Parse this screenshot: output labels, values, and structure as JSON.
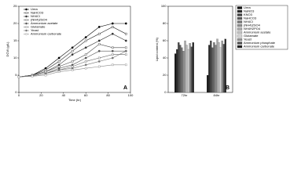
{
  "chart_data": [
    {
      "type": "line",
      "panel": "A",
      "x_label": "Time (hr)",
      "y_label": "DCW (g/L)",
      "x": [
        0,
        12,
        24,
        36,
        48,
        60,
        72,
        84,
        96
      ],
      "xlim": [
        0,
        100
      ],
      "xticks": [
        0,
        20,
        40,
        60,
        80,
        100
      ],
      "ylim": [
        0,
        25
      ],
      "yticks": [
        0,
        5,
        10,
        15,
        20,
        25
      ],
      "series": [
        {
          "name": "Urea",
          "color": "#000000",
          "values": [
            4.5,
            5,
            7,
            10,
            13,
            16,
            19,
            20,
            20
          ]
        },
        {
          "name": "NaHCO3",
          "color": "#222222",
          "values": [
            4.5,
            5,
            6.5,
            9,
            12,
            15,
            17,
            19,
            17
          ]
        },
        {
          "name": "NH4Cl",
          "color": "#333333",
          "values": [
            4.5,
            5,
            6,
            8,
            11,
            13,
            15,
            17,
            15
          ]
        },
        {
          "name": "(NH4)2SO4",
          "color": "#444444",
          "values": [
            4.5,
            5,
            6,
            7.5,
            9,
            11,
            14,
            13,
            13
          ]
        },
        {
          "name": "Ammonium acetate",
          "color": "#555555",
          "values": [
            4.5,
            4.8,
            5.5,
            7,
            8,
            10,
            12,
            12,
            12
          ]
        },
        {
          "name": "Glutamate",
          "color": "#666666",
          "values": [
            4.5,
            4.8,
            5.5,
            6.5,
            7.5,
            9,
            10,
            11,
            11
          ]
        },
        {
          "name": "Yeast",
          "color": "#777777",
          "values": [
            4.5,
            4.8,
            5.5,
            6.5,
            7,
            8,
            9,
            10,
            12
          ]
        },
        {
          "name": "Ammonium carbonate",
          "color": "#888888",
          "values": [
            4.5,
            4.7,
            5,
            6,
            6.5,
            7,
            7.5,
            8,
            8
          ]
        }
      ]
    },
    {
      "type": "bar",
      "panel": "B",
      "y_label": "Lipid content (%)",
      "categories": [
        "72hr",
        "84hr"
      ],
      "ylim": [
        0,
        100
      ],
      "yticks": [
        0,
        20,
        40,
        60,
        80,
        100
      ],
      "series": [
        {
          "name": "Urea",
          "color": "#111111",
          "values": [
            45,
            20
          ]
        },
        {
          "name": "NaNO3",
          "color": "#2a2a2a",
          "values": [
            50,
            55
          ]
        },
        {
          "name": "KNO3",
          "color": "#444444",
          "values": [
            58,
            60
          ]
        },
        {
          "name": "NaHCO3",
          "color": "#5e5e5e",
          "values": [
            55,
            52
          ]
        },
        {
          "name": "NH4Cl",
          "color": "#787878",
          "values": [
            52,
            58
          ]
        },
        {
          "name": "(NH4)2SO4",
          "color": "#929292",
          "values": [
            48,
            55
          ]
        },
        {
          "name": "NH4H2PO4",
          "color": "#acacac",
          "values": [
            60,
            62
          ]
        },
        {
          "name": "Ammonium acetate",
          "color": "#c6c6c6",
          "values": [
            55,
            58
          ]
        },
        {
          "name": "Glutamate",
          "color": "#d8d8d8",
          "values": [
            50,
            52
          ]
        },
        {
          "name": "Yeast",
          "color": "#999999",
          "values": [
            57,
            60
          ]
        },
        {
          "name": "Ammonium phosphate",
          "color": "#555555",
          "values": [
            53,
            56
          ]
        },
        {
          "name": "Ammonium carbonate",
          "color": "#222222",
          "values": [
            58,
            62
          ]
        }
      ]
    }
  ]
}
